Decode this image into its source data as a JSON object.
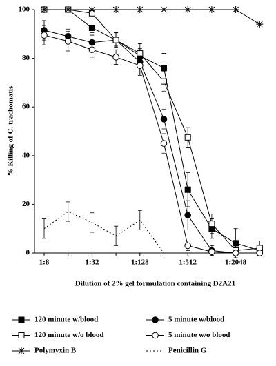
{
  "chart_data": {
    "type": "line",
    "xlabel": "Dilution of 2% gel formulation containing D2A21",
    "ylabel": "% Killing of C. trachomatis",
    "categories": [
      "1:8",
      null,
      "1:32",
      null,
      "1:128",
      null,
      "1:512",
      null,
      "1:2048",
      null
    ],
    "ylim": [
      0,
      100
    ],
    "yticks": [
      0,
      20,
      40,
      60,
      80,
      100
    ],
    "series": [
      {
        "name": "120 minute w/blood",
        "color": "#000000",
        "marker": "square-filled",
        "dash": false,
        "values": [
          100,
          100,
          92.5,
          87.5,
          81,
          76,
          26,
          10,
          4,
          1
        ],
        "errors": [
          0,
          0,
          2,
          2.5,
          3,
          6,
          7,
          4,
          6,
          1
        ]
      },
      {
        "name": "5 minute w/blood",
        "color": "#000000",
        "marker": "circle-filled",
        "dash": false,
        "values": [
          91.5,
          89,
          86.5,
          87.5,
          78.5,
          55,
          15.5,
          1,
          0,
          0
        ],
        "errors": [
          4,
          3,
          3,
          3,
          5,
          4,
          6,
          2,
          1,
          1
        ]
      },
      {
        "name": "120 minute w/o blood",
        "color": "#000000",
        "marker": "square-open",
        "dash": false,
        "values": [
          100,
          100,
          98.5,
          87.5,
          82,
          70.5,
          47.5,
          12,
          1,
          2
        ],
        "errors": [
          0,
          0,
          1.5,
          3,
          4,
          4,
          4,
          4,
          2,
          3
        ]
      },
      {
        "name": "5 minute w/o blood",
        "color": "#000000",
        "marker": "circle-open",
        "dash": false,
        "values": [
          89.5,
          87,
          83.5,
          80.5,
          77,
          45,
          3,
          0.5,
          0,
          0
        ],
        "errors": [
          4,
          4,
          3,
          3,
          4,
          4,
          2,
          1,
          1,
          1
        ]
      },
      {
        "name": "Polymyxin B",
        "color": "#000000",
        "marker": "star",
        "dash": false,
        "values": [
          100,
          100,
          100,
          100,
          100,
          100,
          100,
          100,
          100,
          94
        ],
        "errors": [
          0,
          0,
          0,
          0,
          0,
          0,
          0,
          0,
          0,
          0
        ]
      },
      {
        "name": "Penicillin G",
        "color": "#000000",
        "marker": "none",
        "dash": true,
        "values": [
          10,
          17,
          12.5,
          7,
          13.5,
          0,
          null,
          null,
          null,
          null
        ],
        "errors": [
          4,
          4,
          4,
          4,
          4,
          0,
          null,
          null,
          null,
          null
        ]
      }
    ]
  }
}
